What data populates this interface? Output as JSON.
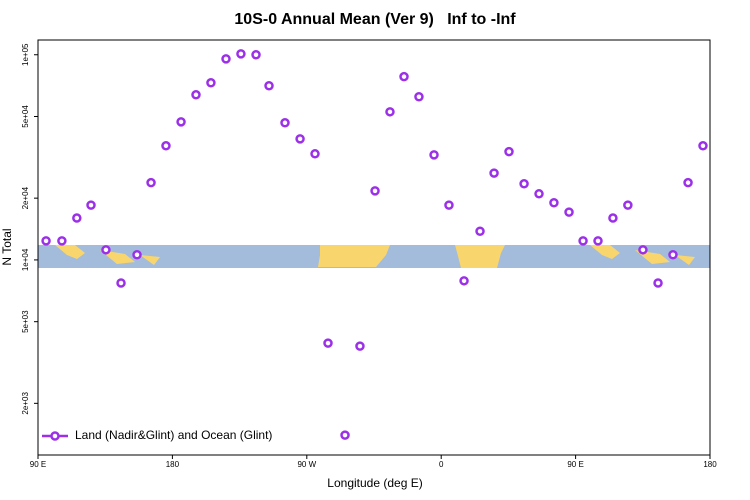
{
  "chart_data": {
    "type": "scatter",
    "title": "10S-0 Annual Mean (Ver 9)   Inf to -Inf",
    "x_label": "Longitude (deg E)",
    "y_label": "N Total",
    "log_y": true,
    "legend_position": "bottom-left",
    "xlim": [
      90,
      540
    ],
    "xticks": [
      {
        "value": 90,
        "label": "90 E"
      },
      180,
      {
        "value": 270,
        "label": "90 W"
      },
      {
        "value": 360,
        "label": "0"
      },
      {
        "value": 450,
        "label": "90 E"
      },
      {
        "value": 540,
        "label": "180"
      }
    ],
    "ylim": [
      1120,
      118000
    ],
    "yticks": [
      {
        "value": 2000,
        "label": "2e+03"
      },
      {
        "value": 5000,
        "label": "5e+03"
      },
      {
        "value": 10000,
        "label": "1e+04"
      },
      {
        "value": 20000,
        "label": "2e+04"
      },
      {
        "value": 50000,
        "label": "5e+04"
      },
      {
        "value": 100000,
        "label": "1e+05"
      }
    ],
    "series": [
      {
        "name": "Land (Nadir&Glint) and Ocean (Glint)",
        "color": "#9b30e8",
        "x": [
          95.4,
          106,
          116,
          125.5,
          135.5,
          145.6,
          156.3,
          165.7,
          175.7,
          185.8,
          195.8,
          205.8,
          215.9,
          225.9,
          236,
          244.7,
          255.4,
          265.5,
          275.5,
          284.2,
          295.6,
          305.6,
          315.7,
          325.7,
          335.1,
          345.1,
          355.2,
          365.2,
          375.3,
          386,
          395.4,
          405.4,
          415.5,
          425.5,
          435.5,
          445.6,
          455,
          465,
          475,
          485,
          495.1,
          505.2,
          515.2,
          525.3,
          535.3
        ],
        "values": [
          12380,
          12380,
          16000,
          18500,
          11200,
          7720,
          10600,
          23800,
          36000,
          47100,
          63800,
          73000,
          95500,
          101000,
          100000,
          70600,
          46600,
          38900,
          32900,
          3930,
          1400,
          3800,
          21700,
          52700,
          78200,
          62400,
          32500,
          18500,
          7910,
          13800,
          26500,
          33700,
          23500,
          21000,
          19000,
          17100,
          12380,
          12380,
          16000,
          18500,
          11200,
          7720,
          10600,
          23800,
          36000
        ]
      }
    ]
  }
}
